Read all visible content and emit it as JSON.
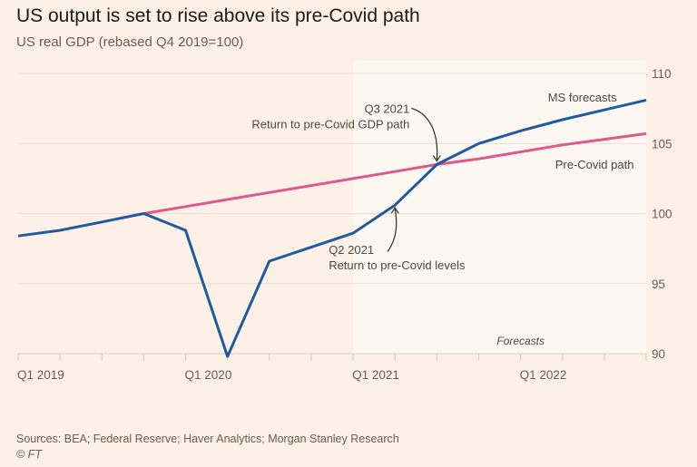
{
  "header": {
    "title": "US output is set to rise above its pre-Covid path",
    "subtitle": "US real GDP (rebased Q4 2019=100)"
  },
  "footer": {
    "source": "Sources: BEA; Federal Reserve; Haver Analytics; Morgan Stanley Research",
    "copyright": "© FT"
  },
  "colors": {
    "background": "#fdf0e6",
    "forecast_shade": "#fdf7f2",
    "gdp_line": "#1f5b9e",
    "precovid_line": "#e0588c",
    "grid": "#e9ddd3",
    "text": "#66605a"
  },
  "chart_data": {
    "type": "line",
    "title": "US output is set to rise above its pre-Covid path",
    "subtitle": "US real GDP (rebased Q4 2019=100)",
    "xlabel": "",
    "ylabel": "",
    "x": [
      "Q1 2019",
      "Q2 2019",
      "Q3 2019",
      "Q4 2019",
      "Q1 2020",
      "Q2 2020",
      "Q3 2020",
      "Q4 2020",
      "Q1 2021",
      "Q2 2021",
      "Q3 2021",
      "Q4 2021",
      "Q1 2022",
      "Q2 2022",
      "Q3 2022",
      "Q4 2022"
    ],
    "x_tick_labels": [
      "Q1 2019",
      "Q1 2020",
      "Q1 2021",
      "Q1 2022"
    ],
    "x_tick_label_indices": [
      0,
      4,
      8,
      12
    ],
    "ylim": [
      90,
      110
    ],
    "y_ticks": [
      90,
      95,
      100,
      105,
      110
    ],
    "y_axis_side": "right",
    "grid": true,
    "series": [
      {
        "name": "US real GDP (MS forecasts)",
        "color": "#1f5b9e",
        "x_start_index": 0,
        "values": [
          98.4,
          98.8,
          99.4,
          100.0,
          98.8,
          89.8,
          96.6,
          97.6,
          98.6,
          100.6,
          103.5,
          105.0,
          105.9,
          106.7,
          107.4,
          108.1
        ]
      },
      {
        "name": "Pre-Covid path",
        "color": "#e0588c",
        "x_start_index": 3,
        "values": [
          100.0,
          100.5,
          101.0,
          101.5,
          102.0,
          102.5,
          103.0,
          103.5,
          103.9,
          104.4,
          104.9,
          105.3,
          105.7
        ]
      }
    ],
    "forecast_region": {
      "start": "Q1 2021",
      "end": "Q4 2022",
      "label": "Forecasts"
    },
    "annotations": [
      {
        "id": "q3-2021",
        "lines": [
          "Q3 2021",
          "Return to pre-Covid GDP path"
        ],
        "points_to": "Q3 2021"
      },
      {
        "id": "q2-2021",
        "lines": [
          "Q2 2021",
          "Return to pre-Covid levels"
        ],
        "points_to": "Q2 2021"
      }
    ],
    "series_labels": [
      {
        "text": "MS forecasts",
        "series": "US real GDP (MS forecasts)",
        "placement": "above line, right"
      },
      {
        "text": "Pre-Covid path",
        "series": "Pre-Covid path",
        "placement": "below line, right"
      }
    ]
  }
}
